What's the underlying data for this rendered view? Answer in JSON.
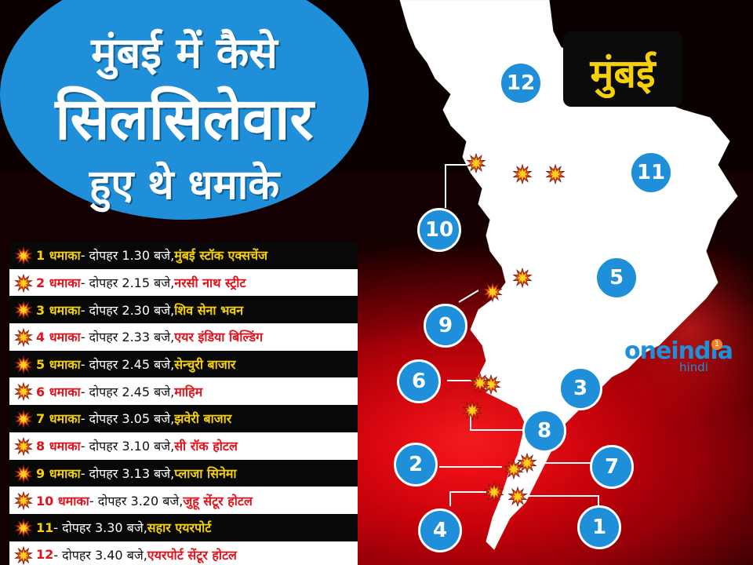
{
  "title": {
    "line1": "मुंबई में कैसे",
    "line2": "सिलसिलेवार",
    "line3": "हुए थे धमाके"
  },
  "city_label": "मुंबई",
  "blasts": [
    {
      "num": "1 धमाका",
      "time": "- दोपहर 1.30 बजे, ",
      "place": "मुंबई स्टॉक एक्सचेंज"
    },
    {
      "num": "2 धमाका",
      "time": "- दोपहर 2.15 बजे, ",
      "place": "नरसी नाथ स्ट्रीट"
    },
    {
      "num": "3 धमाका",
      "time": "- दोपहर 2.30 बजे, ",
      "place": "शिव सेना भवन"
    },
    {
      "num": "4 धमाका",
      "time": "- दोपहर 2.33 बजे, ",
      "place": "एयर इंडिया बिल्डिंग"
    },
    {
      "num": "5 धमाका",
      "time": " - दोपहर 2.45 बजे, ",
      "place": "सेन्चुरी बाजार"
    },
    {
      "num": "6 धमाका",
      "time": " - दोपहर 2.45 बजे, ",
      "place": "माहिम"
    },
    {
      "num": "7 धमाका",
      "time": " - दोपहर 3.05 बजे, ",
      "place": "झवेरी बाजार"
    },
    {
      "num": "8 धमाका",
      "time": " - दोपहर 3.10 बजे, ",
      "place": "सी रॉक होटल"
    },
    {
      "num": "9 धमाका",
      "time": " - दोपहर 3.13 बजे, ",
      "place": "प्लाजा सिनेमा"
    },
    {
      "num": "10 धमाका",
      "time": "- दोपहर 3.20 बजे, ",
      "place": "जुहू सेंटूर होटल"
    },
    {
      "num": "11",
      "time": " - दोपहर 3.30 बजे, ",
      "place": "सहार एयरपोर्ट"
    },
    {
      "num": "12",
      "time": " - दोपहर 3.40 बजे, ",
      "place": "एयरपोर्ट सेंटूर होटल"
    }
  ],
  "map_markers": [
    "12",
    "11",
    "10",
    "5",
    "9",
    "6",
    "3",
    "8",
    "2",
    "7",
    "4",
    "1"
  ],
  "logo": {
    "main": "oneindia",
    "sub": "hindi",
    "dot": "1"
  },
  "colors": {
    "accent_blue": "#1e8fd8",
    "highlight_yellow": "#f6d10b",
    "highlight_red": "#e0121b",
    "background_red": "#b5000b"
  }
}
